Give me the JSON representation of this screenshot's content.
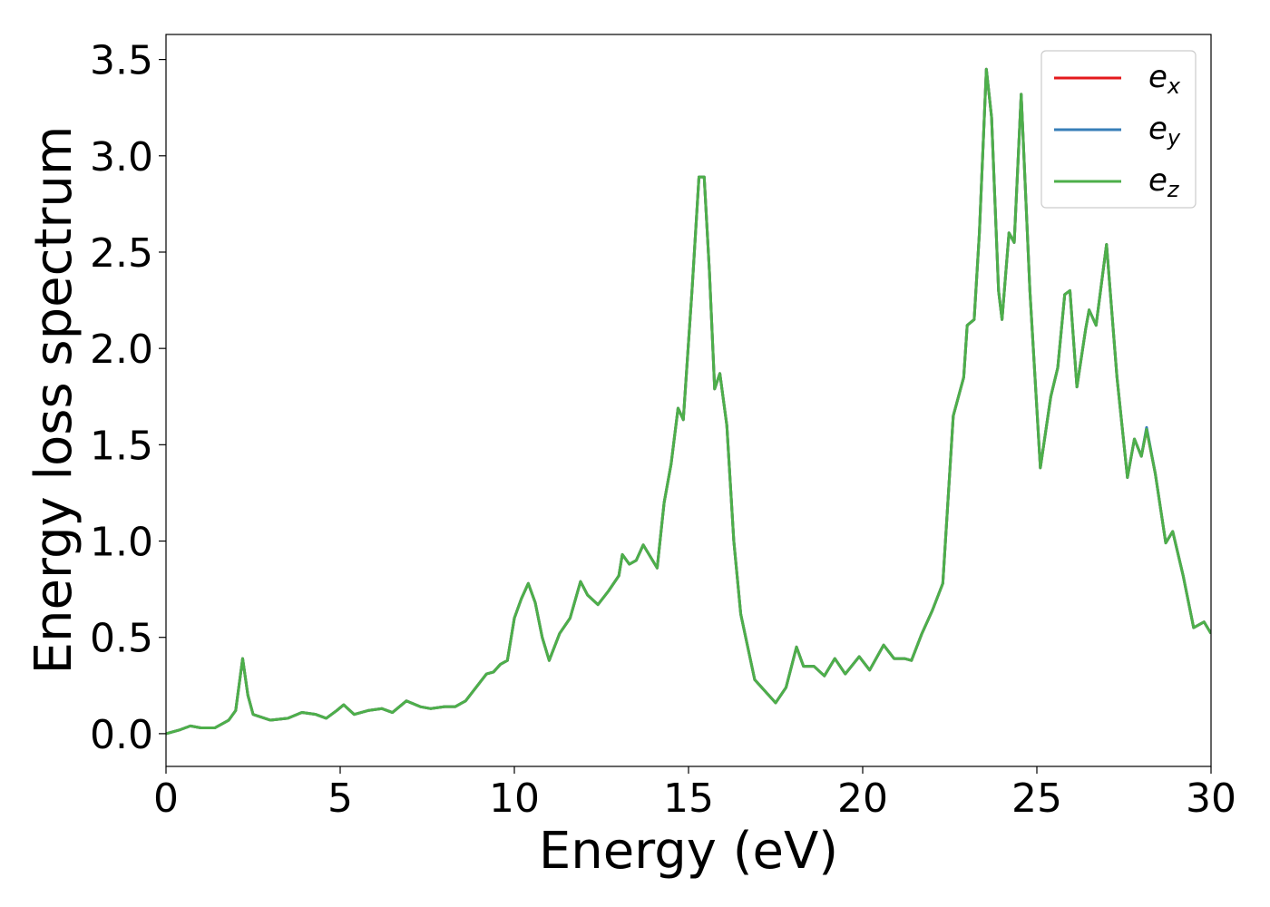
{
  "chart_data": {
    "type": "line",
    "xlabel": "Energy (eV)",
    "ylabel": "Energy loss spectrum",
    "xlim": [
      0,
      30
    ],
    "xticks": [
      0,
      5,
      10,
      15,
      20,
      25,
      30
    ],
    "ylim": [
      -0.17,
      3.63
    ],
    "yticks": [
      {
        "value": 0,
        "label": "0.0"
      },
      0.5,
      {
        "value": 1,
        "label": "1.0"
      },
      1.5,
      {
        "value": 2,
        "label": "2.0"
      },
      2.5,
      {
        "value": 3,
        "label": "3.0"
      },
      3.5
    ],
    "legend": "upper right",
    "grid": false,
    "x": [
      0,
      0.4,
      0.7,
      1.0,
      1.4,
      1.8,
      2.0,
      2.2,
      2.35,
      2.5,
      3.0,
      3.5,
      3.9,
      4.3,
      4.6,
      4.9,
      5.1,
      5.4,
      5.8,
      6.2,
      6.5,
      6.9,
      7.3,
      7.6,
      8.0,
      8.3,
      8.6,
      8.9,
      9.2,
      9.4,
      9.6,
      9.8,
      10.0,
      10.2,
      10.4,
      10.6,
      10.8,
      11.0,
      11.3,
      11.6,
      11.9,
      12.1,
      12.4,
      12.7,
      13.0,
      13.1,
      13.3,
      13.5,
      13.7,
      13.9,
      14.1,
      14.3,
      14.5,
      14.7,
      14.85,
      15.1,
      15.3,
      15.45,
      15.6,
      15.75,
      15.9,
      16.1,
      16.3,
      16.5,
      16.7,
      16.9,
      17.2,
      17.5,
      17.8,
      18.1,
      18.3,
      18.6,
      18.9,
      19.2,
      19.5,
      19.9,
      20.2,
      20.6,
      20.9,
      21.2,
      21.4,
      21.7,
      22.0,
      22.3,
      22.6,
      22.9,
      23.0,
      23.2,
      23.35,
      23.55,
      23.7,
      23.9,
      24.0,
      24.2,
      24.35,
      24.55,
      24.8,
      25.1,
      25.4,
      25.6,
      25.8,
      25.95,
      26.15,
      26.4,
      26.5,
      26.7,
      26.9,
      27.0,
      27.3,
      27.6,
      27.8,
      28.0,
      28.15,
      28.4,
      28.7,
      28.9,
      29.2,
      29.5,
      29.8,
      30.0
    ],
    "series": [
      {
        "name": "ex",
        "color": "#e41a1c",
        "values": [
          0.0,
          0.02,
          0.04,
          0.03,
          0.03,
          0.07,
          0.12,
          0.39,
          0.2,
          0.1,
          0.07,
          0.08,
          0.11,
          0.1,
          0.08,
          0.12,
          0.15,
          0.1,
          0.12,
          0.13,
          0.11,
          0.17,
          0.14,
          0.13,
          0.14,
          0.14,
          0.17,
          0.24,
          0.31,
          0.32,
          0.36,
          0.38,
          0.6,
          0.7,
          0.78,
          0.68,
          0.5,
          0.38,
          0.52,
          0.6,
          0.79,
          0.72,
          0.67,
          0.74,
          0.82,
          0.93,
          0.88,
          0.9,
          0.98,
          0.92,
          0.86,
          1.2,
          1.4,
          1.69,
          1.63,
          2.3,
          2.89,
          2.89,
          2.4,
          1.79,
          1.87,
          1.6,
          1.0,
          0.62,
          0.45,
          0.28,
          0.22,
          0.16,
          0.24,
          0.45,
          0.35,
          0.35,
          0.3,
          0.39,
          0.31,
          0.4,
          0.33,
          0.46,
          0.39,
          0.39,
          0.38,
          0.52,
          0.64,
          0.78,
          1.65,
          1.85,
          2.12,
          2.15,
          2.6,
          3.45,
          3.2,
          2.3,
          2.15,
          2.6,
          2.55,
          3.32,
          2.3,
          1.38,
          1.75,
          1.9,
          2.28,
          2.3,
          1.8,
          2.1,
          2.2,
          2.12,
          2.4,
          2.54,
          1.85,
          1.33,
          1.53,
          1.44,
          1.58,
          1.35,
          0.99,
          1.05,
          0.82,
          0.55,
          0.58,
          0.52
        ]
      },
      {
        "name": "ey",
        "color": "#377eb8",
        "values": [
          0.0,
          0.02,
          0.04,
          0.03,
          0.03,
          0.07,
          0.12,
          0.39,
          0.2,
          0.1,
          0.07,
          0.08,
          0.11,
          0.1,
          0.08,
          0.12,
          0.15,
          0.1,
          0.12,
          0.13,
          0.11,
          0.17,
          0.14,
          0.13,
          0.14,
          0.14,
          0.17,
          0.24,
          0.31,
          0.32,
          0.36,
          0.38,
          0.6,
          0.7,
          0.78,
          0.68,
          0.5,
          0.38,
          0.52,
          0.6,
          0.79,
          0.72,
          0.67,
          0.74,
          0.82,
          0.93,
          0.88,
          0.9,
          0.98,
          0.92,
          0.86,
          1.2,
          1.4,
          1.69,
          1.63,
          2.3,
          2.89,
          2.89,
          2.4,
          1.79,
          1.87,
          1.6,
          1.0,
          0.62,
          0.45,
          0.28,
          0.22,
          0.16,
          0.24,
          0.45,
          0.35,
          0.35,
          0.3,
          0.39,
          0.31,
          0.4,
          0.33,
          0.46,
          0.39,
          0.39,
          0.38,
          0.52,
          0.64,
          0.78,
          1.65,
          1.85,
          2.12,
          2.15,
          2.6,
          3.45,
          3.2,
          2.3,
          2.15,
          2.6,
          2.55,
          3.32,
          2.3,
          1.38,
          1.75,
          1.9,
          2.28,
          2.3,
          1.8,
          2.1,
          2.2,
          2.12,
          2.4,
          2.54,
          1.85,
          1.33,
          1.53,
          1.44,
          1.59,
          1.35,
          0.99,
          1.05,
          0.82,
          0.55,
          0.58,
          0.52
        ]
      },
      {
        "name": "ez",
        "color": "#4daf4a",
        "values": [
          0.0,
          0.02,
          0.04,
          0.03,
          0.03,
          0.07,
          0.12,
          0.39,
          0.2,
          0.1,
          0.07,
          0.08,
          0.11,
          0.1,
          0.08,
          0.12,
          0.15,
          0.1,
          0.12,
          0.13,
          0.11,
          0.17,
          0.14,
          0.13,
          0.14,
          0.14,
          0.17,
          0.24,
          0.31,
          0.32,
          0.36,
          0.38,
          0.6,
          0.7,
          0.78,
          0.68,
          0.5,
          0.38,
          0.52,
          0.6,
          0.79,
          0.72,
          0.67,
          0.74,
          0.82,
          0.93,
          0.88,
          0.9,
          0.98,
          0.92,
          0.86,
          1.2,
          1.4,
          1.69,
          1.63,
          2.3,
          2.89,
          2.89,
          2.4,
          1.79,
          1.87,
          1.6,
          1.0,
          0.62,
          0.45,
          0.28,
          0.22,
          0.16,
          0.24,
          0.45,
          0.35,
          0.35,
          0.3,
          0.39,
          0.31,
          0.4,
          0.33,
          0.46,
          0.39,
          0.39,
          0.38,
          0.52,
          0.64,
          0.78,
          1.65,
          1.85,
          2.12,
          2.15,
          2.6,
          3.45,
          3.2,
          2.3,
          2.15,
          2.6,
          2.55,
          3.32,
          2.3,
          1.38,
          1.75,
          1.9,
          2.28,
          2.3,
          1.8,
          2.1,
          2.2,
          2.12,
          2.4,
          2.54,
          1.85,
          1.33,
          1.53,
          1.44,
          1.58,
          1.35,
          0.99,
          1.05,
          0.82,
          0.55,
          0.58,
          0.52
        ]
      }
    ]
  }
}
